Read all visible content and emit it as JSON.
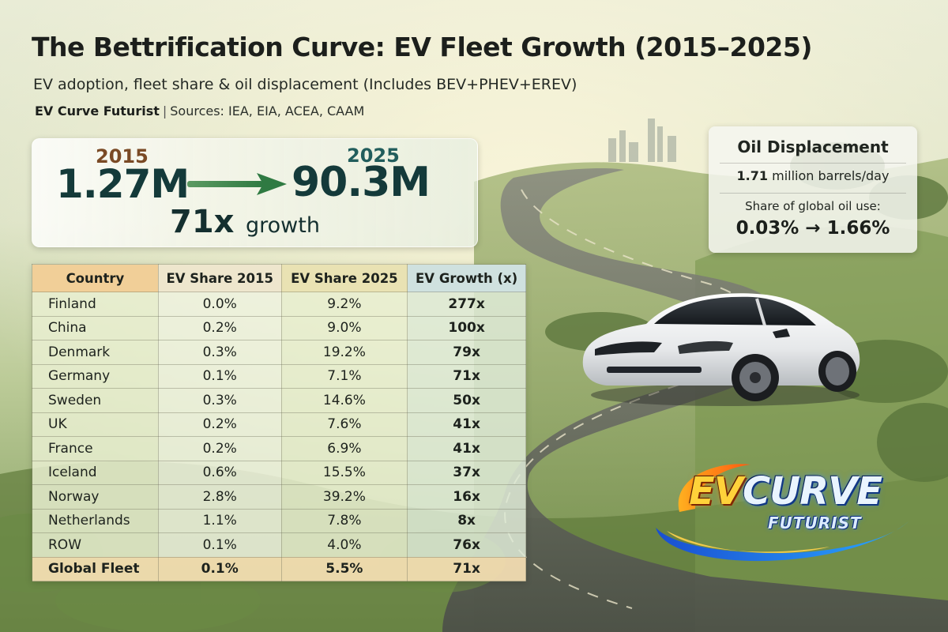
{
  "header": {
    "title": "The Bettrification Curve: EV Fleet Growth (2015–2025)",
    "subtitle": "EV adoption, fleet share & oil displacement (Includes BEV+PHEV+EREV)",
    "author": "EV Curve Futurist",
    "sources": "Sources: IEA, EIA, ACEA, CAAM"
  },
  "fleet": {
    "year_start": "2015",
    "value_start": "1.27M",
    "year_end": "2025",
    "value_end": "90.3M",
    "growth_multiple": "71x",
    "growth_label": "growth"
  },
  "oil": {
    "title": "Oil Displacement",
    "rate_value": "1.71",
    "rate_unit": "million barrels/day",
    "share_label": "Share of global oil use:",
    "share_change": "0.03% → 1.66%"
  },
  "table": {
    "headers": [
      "Country",
      "EV Share 2015",
      "EV Share 2025",
      "EV Growth (x)"
    ],
    "rows": [
      {
        "country": "Finland",
        "share_2015": "0.0%",
        "share_2025": "9.2%",
        "growth": "277x"
      },
      {
        "country": "China",
        "share_2015": "0.2%",
        "share_2025": "9.0%",
        "growth": "100x"
      },
      {
        "country": "Denmark",
        "share_2015": "0.3%",
        "share_2025": "19.2%",
        "growth": "79x"
      },
      {
        "country": "Germany",
        "share_2015": "0.1%",
        "share_2025": "7.1%",
        "growth": "71x"
      },
      {
        "country": "Sweden",
        "share_2015": "0.3%",
        "share_2025": "14.6%",
        "growth": "50x"
      },
      {
        "country": "UK",
        "share_2015": "0.2%",
        "share_2025": "7.6%",
        "growth": "41x"
      },
      {
        "country": "France",
        "share_2015": "0.2%",
        "share_2025": "6.9%",
        "growth": "41x"
      },
      {
        "country": "Iceland",
        "share_2015": "0.6%",
        "share_2025": "15.5%",
        "growth": "37x"
      },
      {
        "country": "Norway",
        "share_2015": "2.8%",
        "share_2025": "39.2%",
        "growth": "16x"
      },
      {
        "country": "Netherlands",
        "share_2015": "1.1%",
        "share_2025": "7.8%",
        "growth": "8x"
      },
      {
        "country": "ROW",
        "share_2015": "0.1%",
        "share_2025": "4.0%",
        "growth": "76x"
      }
    ],
    "total": {
      "country": "Global Fleet",
      "share_2015": "0.1%",
      "share_2025": "5.5%",
      "growth": "71x"
    }
  },
  "logo": {
    "main_ev": "EV",
    "main_curve": "CURVE",
    "sub": "FUTURIST"
  },
  "icons": {
    "arrow": "arrow-right-icon",
    "car": "car-illustration",
    "logo": "ev-curve-futurist-logo"
  },
  "colors": {
    "arrow_green": "#3f8a4a",
    "header_country": "#f1cf98",
    "header_growth": "#cfe1df",
    "total_row": "#f6dfb4"
  }
}
